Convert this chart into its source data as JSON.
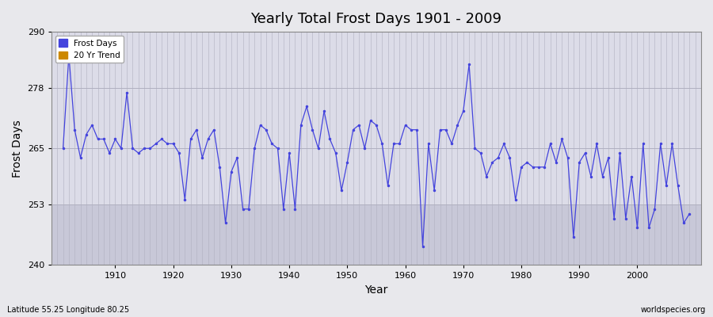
{
  "title": "Yearly Total Frost Days 1901 - 2009",
  "xlabel": "Year",
  "ylabel": "Frost Days",
  "subtitle": "Latitude 55.25 Longitude 80.25",
  "watermark": "worldspecies.org",
  "ylim": [
    240,
    290
  ],
  "yticks": [
    240,
    253,
    265,
    278,
    290
  ],
  "xlim_left": 1899,
  "xlim_right": 2011,
  "line_color": "#4444dd",
  "marker_color": "#4444dd",
  "bg_color": "#e8e8ec",
  "plot_bg_color": "#dcdce8",
  "grid_color": "#b0b0c0",
  "shade_below": 253,
  "shade_color": "#c8c8d8",
  "years": [
    1901,
    1902,
    1903,
    1904,
    1905,
    1906,
    1907,
    1908,
    1909,
    1910,
    1911,
    1912,
    1913,
    1914,
    1915,
    1916,
    1917,
    1918,
    1919,
    1920,
    1921,
    1922,
    1923,
    1924,
    1925,
    1926,
    1927,
    1928,
    1929,
    1930,
    1931,
    1932,
    1933,
    1934,
    1935,
    1936,
    1937,
    1938,
    1939,
    1940,
    1941,
    1942,
    1943,
    1944,
    1945,
    1946,
    1947,
    1948,
    1949,
    1950,
    1951,
    1952,
    1953,
    1954,
    1955,
    1956,
    1957,
    1958,
    1959,
    1960,
    1961,
    1962,
    1963,
    1964,
    1965,
    1966,
    1967,
    1968,
    1969,
    1970,
    1971,
    1972,
    1973,
    1974,
    1975,
    1976,
    1977,
    1978,
    1979,
    1980,
    1981,
    1982,
    1983,
    1984,
    1985,
    1986,
    1987,
    1988,
    1989,
    1990,
    1991,
    1992,
    1993,
    1994,
    1995,
    1996,
    1997,
    1998,
    1999,
    2000,
    2001,
    2002,
    2003,
    2004,
    2005,
    2006,
    2007,
    2008,
    2009
  ],
  "values": [
    265,
    285,
    269,
    263,
    268,
    270,
    267,
    267,
    264,
    267,
    265,
    277,
    265,
    264,
    265,
    265,
    266,
    267,
    266,
    266,
    264,
    254,
    267,
    269,
    263,
    267,
    269,
    261,
    249,
    260,
    263,
    252,
    252,
    265,
    270,
    269,
    266,
    265,
    252,
    264,
    252,
    270,
    274,
    269,
    265,
    273,
    267,
    264,
    256,
    262,
    269,
    270,
    265,
    271,
    270,
    266,
    257,
    266,
    266,
    270,
    269,
    269,
    244,
    266,
    256,
    269,
    269,
    266,
    270,
    273,
    283,
    265,
    264,
    259,
    262,
    263,
    266,
    263,
    254,
    261,
    262,
    261,
    261,
    261,
    266,
    262,
    267,
    263,
    246,
    262,
    264,
    259,
    266,
    259,
    263,
    250,
    264,
    250,
    259,
    248,
    266,
    248,
    252,
    266,
    257,
    266,
    257,
    249,
    251
  ]
}
